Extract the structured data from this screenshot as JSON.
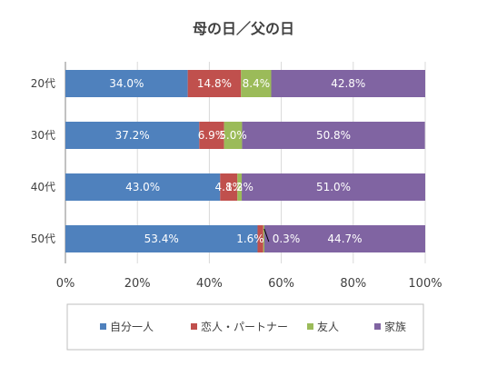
{
  "chart_data": {
    "type": "bar",
    "orientation": "horizontal-stacked-100",
    "title": "母の日／父の日",
    "categories": [
      "20代",
      "30代",
      "40代",
      "50代"
    ],
    "series": [
      {
        "name": "自分一人",
        "color": "#4f81bd",
        "values": [
          34.0,
          37.2,
          43.0,
          53.4
        ]
      },
      {
        "name": "恋人・パートナー",
        "color": "#c0504d",
        "values": [
          14.8,
          6.9,
          4.8,
          1.6
        ]
      },
      {
        "name": "友人",
        "color": "#9bbb59",
        "values": [
          8.4,
          5.0,
          1.2,
          0.3
        ]
      },
      {
        "name": "家族",
        "color": "#8064a2",
        "values": [
          42.8,
          50.8,
          51.0,
          44.7
        ]
      }
    ],
    "data_labels": [
      [
        "34.0%",
        "14.8%",
        "8.4%",
        "42.8%"
      ],
      [
        "37.2%",
        "6.9%",
        "5.0%",
        "50.8%"
      ],
      [
        "43.0%",
        "4.8%",
        "1.2%",
        "51.0%"
      ],
      [
        "53.4%",
        "1.6%",
        "0.3%",
        "44.7%"
      ]
    ],
    "x_ticks": [
      "0%",
      "20%",
      "40%",
      "60%",
      "80%",
      "100%"
    ],
    "xlim": [
      0,
      100
    ],
    "grid": true,
    "legend_position": "bottom"
  }
}
